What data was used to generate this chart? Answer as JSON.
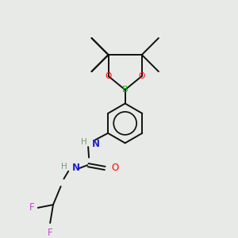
{
  "bg_color": "#e8eae8",
  "atom_colors": {
    "B": "#00bb00",
    "O": "#ff0000",
    "N": "#2222cc",
    "F": "#cc44cc",
    "H_label": "#779977",
    "C": "#111111"
  },
  "bond_color": "#111111",
  "bond_lw": 1.4
}
